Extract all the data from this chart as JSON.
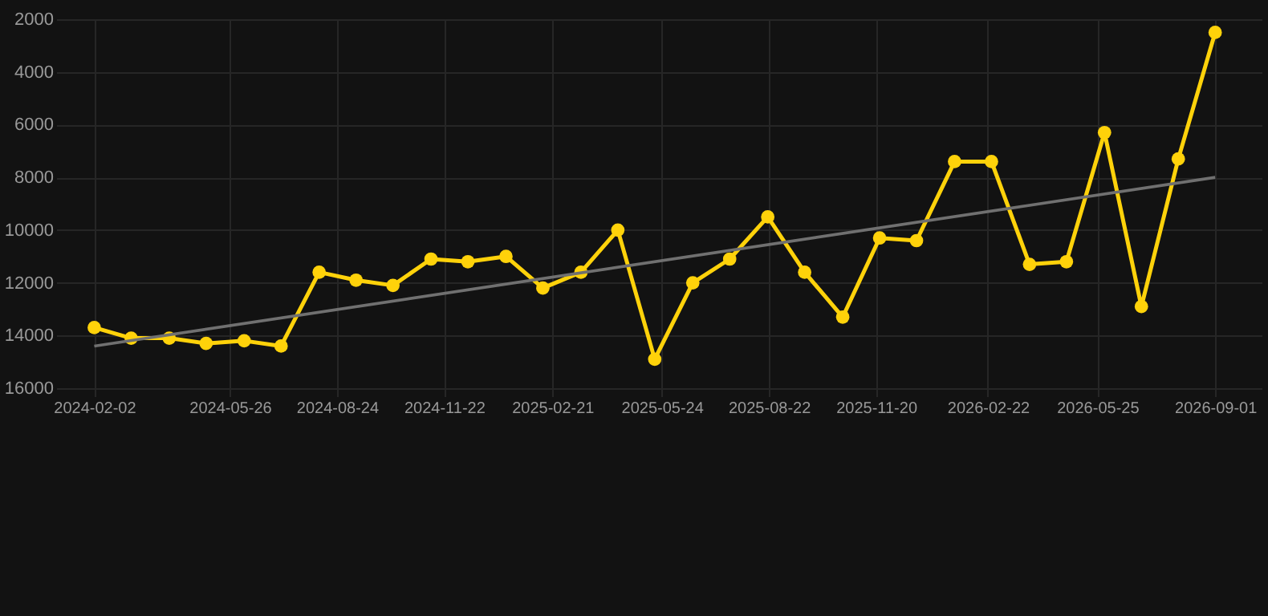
{
  "chart_data": {
    "type": "line",
    "marker": "circle",
    "line_style": "solid",
    "grid": true,
    "legend": false,
    "x": [
      "2024-02-02",
      "2024-03-04",
      "2024-04-05",
      "2024-05-06",
      "2024-06-07",
      "2024-07-08",
      "2024-08-09",
      "2024-09-09",
      "2024-10-10",
      "2024-11-11",
      "2024-12-12",
      "2025-01-13",
      "2025-02-13",
      "2025-03-17",
      "2025-04-17",
      "2025-05-18",
      "2025-06-19",
      "2025-07-20",
      "2025-08-21",
      "2025-09-21",
      "2025-10-23",
      "2025-11-23",
      "2025-12-24",
      "2026-01-25",
      "2026-02-25",
      "2026-03-29",
      "2026-04-29",
      "2026-05-31",
      "2026-07-01",
      "2026-08-01",
      "2026-09-01"
    ],
    "series": [
      {
        "color": "#ffd20a",
        "values": [
          13700,
          14100,
          14100,
          14300,
          14200,
          14400,
          11600,
          11900,
          12100,
          11100,
          11200,
          11000,
          12200,
          11600,
          10000,
          14900,
          12000,
          11100,
          9500,
          11600,
          13300,
          10300,
          10400,
          7400,
          7400,
          11300,
          11200,
          6300,
          12900,
          7300,
          2500
        ]
      },
      {
        "type": "line",
        "color": "#707070",
        "marker": "none",
        "x": [
          "2024-02-02",
          "2026-09-01"
        ],
        "values": [
          14400,
          8000
        ]
      }
    ],
    "xlim": [
      "2024-01-01",
      "2026-10-10"
    ],
    "xticks": [
      "2024-02-02",
      "2024-05-26",
      "2024-08-24",
      "2024-11-22",
      "2025-02-21",
      "2025-05-24",
      "2025-08-22",
      "2025-11-20",
      "2026-02-22",
      "2026-05-25",
      "2026-09-01"
    ],
    "ylim": [
      16000,
      2000
    ],
    "yticks": [
      2000,
      4000,
      6000,
      8000,
      10000,
      12000,
      14000,
      16000
    ]
  }
}
